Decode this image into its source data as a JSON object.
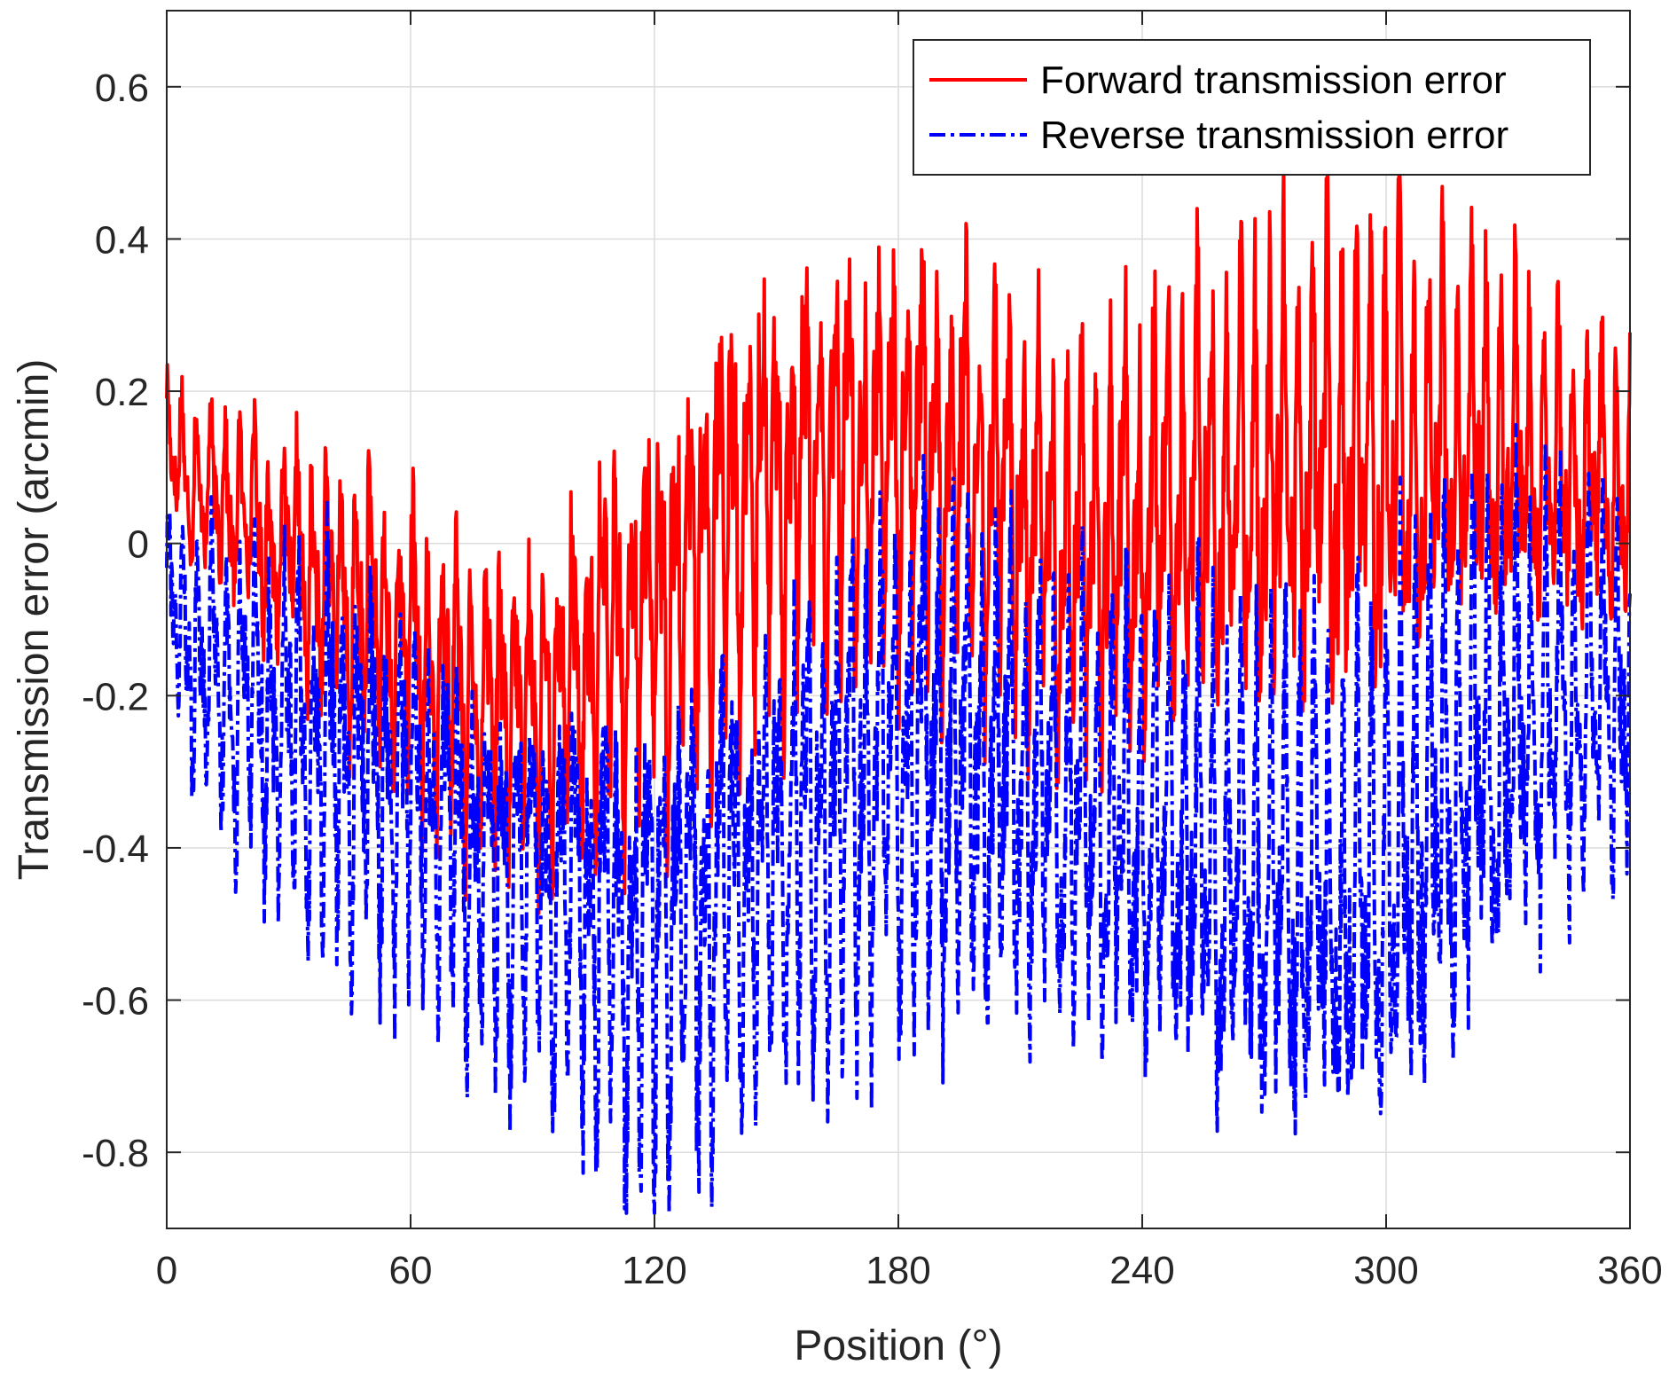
{
  "chart_data": {
    "type": "line",
    "title": "",
    "xlabel": "Position (°)",
    "ylabel": "Transmission error (arcmin)",
    "xlim": [
      0,
      360
    ],
    "ylim": [
      -0.9,
      0.7
    ],
    "xticks": [
      0,
      60,
      120,
      180,
      240,
      300,
      360
    ],
    "xtick_labels": [
      "0",
      "60",
      "120",
      "180",
      "240",
      "300",
      "360"
    ],
    "yticks": [
      0.6,
      0.4,
      0.2,
      0,
      -0.2,
      -0.4,
      -0.6,
      -0.8
    ],
    "ytick_labels": [
      "0.6",
      "0.4",
      "0.2",
      "0",
      "-0.2",
      "-0.4",
      "-0.6",
      "-0.8"
    ],
    "grid": true,
    "legend_position": "top-right",
    "series": [
      {
        "name": "Forward transmission error",
        "color": "#ff0000",
        "line_style": "solid",
        "x": [
          0,
          5,
          10,
          15,
          20,
          25,
          30,
          35,
          40,
          45,
          50,
          55,
          60,
          65,
          70,
          75,
          80,
          85,
          90,
          95,
          100,
          105,
          110,
          115,
          120,
          125,
          130,
          135,
          140,
          145,
          150,
          155,
          160,
          165,
          170,
          175,
          180,
          185,
          190,
          195,
          200,
          205,
          210,
          215,
          220,
          225,
          230,
          235,
          240,
          245,
          250,
          255,
          260,
          265,
          270,
          275,
          280,
          285,
          290,
          295,
          300,
          305,
          310,
          315,
          320,
          325,
          330,
          335,
          340,
          345,
          350,
          355,
          360
        ],
        "mean": [
          0.12,
          0.1,
          0.06,
          0.06,
          0.04,
          0.0,
          -0.01,
          -0.04,
          -0.06,
          -0.08,
          -0.1,
          -0.12,
          -0.14,
          -0.16,
          -0.18,
          -0.2,
          -0.22,
          -0.2,
          -0.24,
          -0.2,
          -0.18,
          -0.14,
          -0.12,
          -0.1,
          -0.08,
          -0.05,
          -0.02,
          0.02,
          0.04,
          0.06,
          0.08,
          0.08,
          0.1,
          0.1,
          0.12,
          0.12,
          0.12,
          0.12,
          0.1,
          0.1,
          0.08,
          0.06,
          0.04,
          0.02,
          0.0,
          -0.02,
          0.0,
          0.02,
          0.02,
          0.04,
          0.04,
          0.06,
          0.06,
          0.06,
          0.08,
          0.08,
          0.08,
          0.1,
          0.1,
          0.1,
          0.1,
          0.12,
          0.12,
          0.12,
          0.12,
          0.12,
          0.12,
          0.1,
          0.1,
          0.1,
          0.08,
          0.08,
          0.06
        ],
        "amplitude": [
          0.1,
          0.12,
          0.12,
          0.14,
          0.14,
          0.16,
          0.16,
          0.18,
          0.18,
          0.2,
          0.22,
          0.22,
          0.22,
          0.22,
          0.22,
          0.22,
          0.22,
          0.22,
          0.24,
          0.24,
          0.26,
          0.28,
          0.28,
          0.28,
          0.28,
          0.3,
          0.3,
          0.32,
          0.32,
          0.32,
          0.3,
          0.3,
          0.3,
          0.3,
          0.3,
          0.3,
          0.3,
          0.3,
          0.3,
          0.3,
          0.3,
          0.3,
          0.3,
          0.3,
          0.3,
          0.32,
          0.32,
          0.32,
          0.32,
          0.32,
          0.32,
          0.34,
          0.34,
          0.34,
          0.34,
          0.34,
          0.34,
          0.34,
          0.34,
          0.36,
          0.36,
          0.34,
          0.3,
          0.28,
          0.26,
          0.26,
          0.24,
          0.24,
          0.22,
          0.22,
          0.2,
          0.2,
          0.18
        ]
      },
      {
        "name": "Reverse transmission error",
        "color": "#0000ff",
        "line_style": "dashdot",
        "x": [
          0,
          5,
          10,
          15,
          20,
          25,
          30,
          35,
          40,
          45,
          50,
          55,
          60,
          65,
          70,
          75,
          80,
          85,
          90,
          95,
          100,
          105,
          110,
          115,
          120,
          125,
          130,
          135,
          140,
          145,
          150,
          155,
          160,
          165,
          170,
          175,
          180,
          185,
          190,
          195,
          200,
          205,
          210,
          215,
          220,
          225,
          230,
          235,
          240,
          245,
          250,
          255,
          260,
          265,
          270,
          275,
          280,
          285,
          290,
          295,
          300,
          305,
          310,
          315,
          320,
          325,
          330,
          335,
          340,
          345,
          350,
          355,
          360
        ],
        "mean": [
          -0.08,
          -0.12,
          -0.16,
          -0.18,
          -0.2,
          -0.22,
          -0.24,
          -0.26,
          -0.26,
          -0.28,
          -0.3,
          -0.32,
          -0.34,
          -0.36,
          -0.38,
          -0.4,
          -0.42,
          -0.42,
          -0.44,
          -0.44,
          -0.46,
          -0.48,
          -0.5,
          -0.52,
          -0.5,
          -0.5,
          -0.48,
          -0.46,
          -0.44,
          -0.42,
          -0.4,
          -0.38,
          -0.36,
          -0.34,
          -0.32,
          -0.3,
          -0.28,
          -0.28,
          -0.28,
          -0.3,
          -0.3,
          -0.3,
          -0.32,
          -0.34,
          -0.34,
          -0.36,
          -0.36,
          -0.38,
          -0.38,
          -0.4,
          -0.4,
          -0.42,
          -0.44,
          -0.44,
          -0.46,
          -0.46,
          -0.46,
          -0.48,
          -0.48,
          -0.46,
          -0.44,
          -0.4,
          -0.36,
          -0.32,
          -0.3,
          -0.28,
          -0.26,
          -0.24,
          -0.22,
          -0.22,
          -0.2,
          -0.2,
          -0.18
        ],
        "amplitude": [
          0.16,
          0.18,
          0.2,
          0.22,
          0.24,
          0.26,
          0.26,
          0.26,
          0.28,
          0.28,
          0.28,
          0.28,
          0.28,
          0.28,
          0.28,
          0.28,
          0.28,
          0.28,
          0.28,
          0.3,
          0.32,
          0.32,
          0.34,
          0.36,
          0.36,
          0.36,
          0.36,
          0.36,
          0.36,
          0.36,
          0.36,
          0.36,
          0.36,
          0.36,
          0.38,
          0.38,
          0.4,
          0.4,
          0.38,
          0.36,
          0.36,
          0.34,
          0.34,
          0.34,
          0.34,
          0.32,
          0.32,
          0.32,
          0.32,
          0.32,
          0.34,
          0.36,
          0.36,
          0.36,
          0.38,
          0.38,
          0.38,
          0.38,
          0.38,
          0.4,
          0.4,
          0.4,
          0.42,
          0.42,
          0.4,
          0.38,
          0.36,
          0.34,
          0.32,
          0.3,
          0.28,
          0.28,
          0.26
        ]
      }
    ]
  }
}
